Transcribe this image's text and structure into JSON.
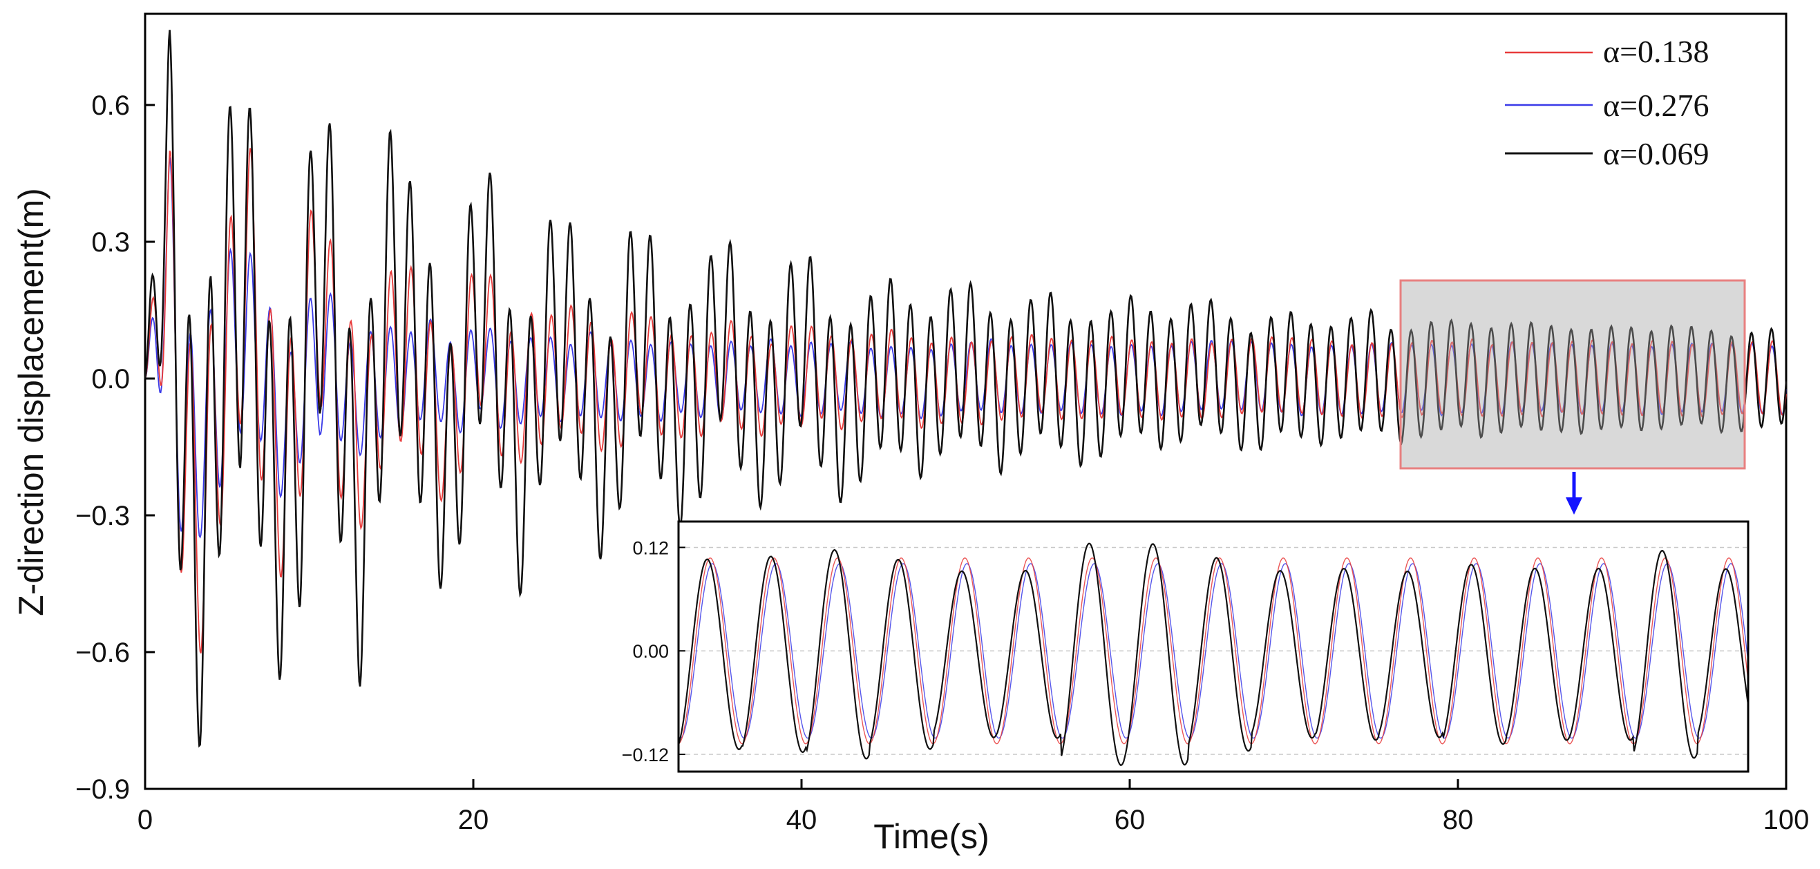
{
  "chart_data": {
    "type": "line",
    "xlabel": "Time(s)",
    "ylabel": "Z-direction displacement(m)",
    "xlim": [
      0,
      100
    ],
    "ylim": [
      -0.9,
      0.8
    ],
    "xticks": [
      "0",
      "20",
      "40",
      "60",
      "80",
      "100"
    ],
    "yticks": [
      "-0.9",
      "-0.6",
      "-0.3",
      "0.0",
      "0.3",
      "0.6"
    ],
    "legend_position": "top-right",
    "series": [
      {
        "name": "α=0.138",
        "color": "#e83a3a",
        "amp_start": 0.5,
        "amp_end": 0.105,
        "decay": 0.065
      },
      {
        "name": "α=0.276",
        "color": "#3a3ae8",
        "amp_start": 0.45,
        "amp_end": 0.1,
        "decay": 0.12
      },
      {
        "name": "α=0.069",
        "color": "#111111",
        "amp_start": 0.6,
        "amp_end": 0.115,
        "decay": 0.03
      }
    ],
    "highlight_region": {
      "x_range": [
        76,
        97
      ],
      "y_range": [
        -0.2,
        0.22
      ],
      "color": "#e88080"
    },
    "inset": {
      "x_range": [
        76,
        97
      ],
      "ylim": [
        -0.14,
        0.15
      ],
      "yticks": [
        "0.12",
        "0.00",
        "-0.12"
      ],
      "period_s": 1.25,
      "amplitude": 0.11
    }
  }
}
